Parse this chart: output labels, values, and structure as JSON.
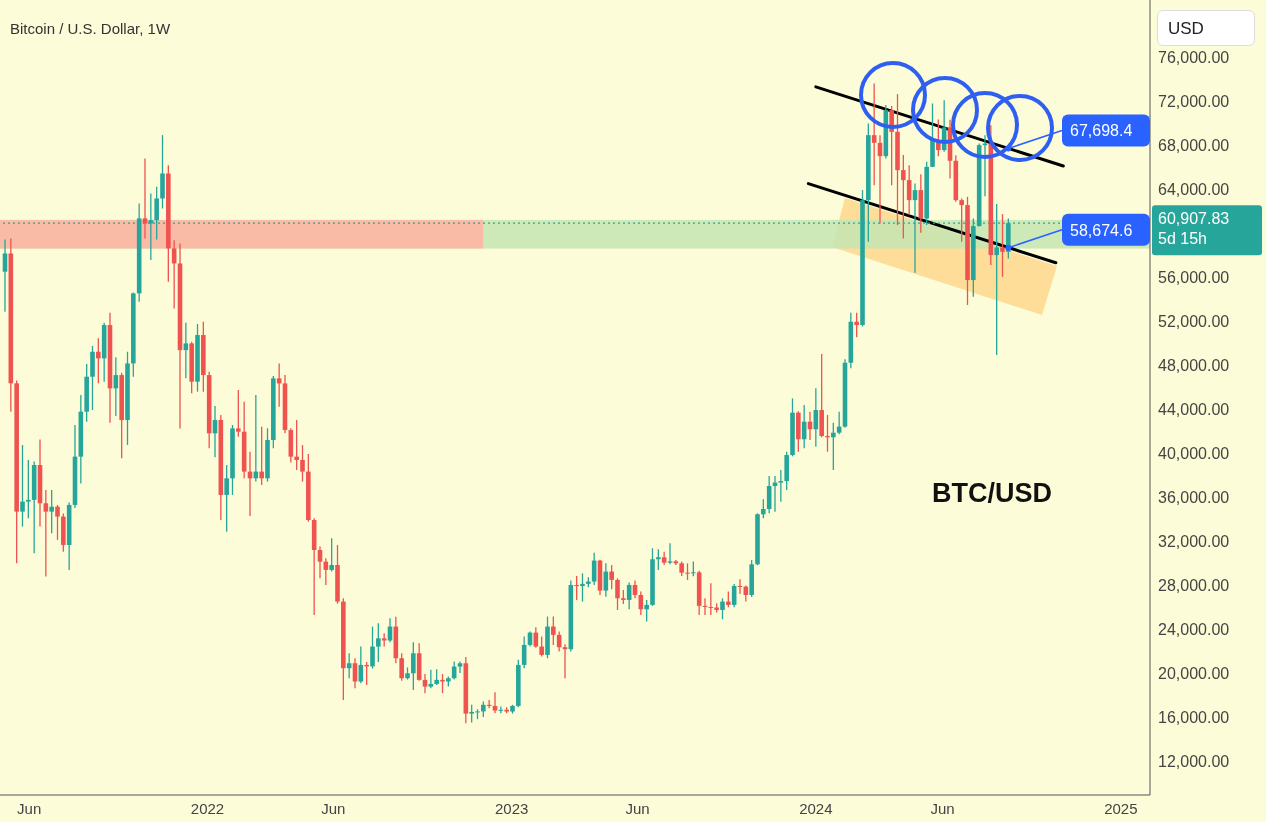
{
  "chart_data": {
    "type": "candlestick",
    "title": "Bitcoin / U.S. Dollar, 1W",
    "ylabel": "USD",
    "x": [
      "2021-05-03",
      "2021-05-10",
      "2021-05-17",
      "2021-05-24",
      "2021-05-31",
      "2021-06-07",
      "2021-06-14",
      "2021-06-21",
      "2021-06-28",
      "2021-07-05",
      "2021-07-12",
      "2021-07-19",
      "2021-07-26",
      "2021-08-02",
      "2021-08-09",
      "2021-08-16",
      "2021-08-23",
      "2021-08-30",
      "2021-09-06",
      "2021-09-13",
      "2021-09-20",
      "2021-09-27",
      "2021-10-04",
      "2021-10-11",
      "2021-10-18",
      "2021-10-25",
      "2021-11-01",
      "2021-11-08",
      "2021-11-15",
      "2021-11-22",
      "2021-11-29",
      "2021-12-06",
      "2021-12-13",
      "2021-12-20",
      "2021-12-27",
      "2022-01-03",
      "2022-01-10",
      "2022-01-17",
      "2022-01-24",
      "2022-01-31",
      "2022-02-07",
      "2022-02-14",
      "2022-02-21",
      "2022-02-28",
      "2022-03-07",
      "2022-03-14",
      "2022-03-21",
      "2022-03-28",
      "2022-04-04",
      "2022-04-11",
      "2022-04-18",
      "2022-04-25",
      "2022-05-02",
      "2022-05-09",
      "2022-05-16",
      "2022-05-23",
      "2022-05-30",
      "2022-06-06",
      "2022-06-13",
      "2022-06-20",
      "2022-06-27",
      "2022-07-04",
      "2022-07-11",
      "2022-07-18",
      "2022-07-25",
      "2022-08-01",
      "2022-08-08",
      "2022-08-15",
      "2022-08-22",
      "2022-08-29",
      "2022-09-05",
      "2022-09-12",
      "2022-09-19",
      "2022-09-26",
      "2022-10-03",
      "2022-10-10",
      "2022-10-17",
      "2022-10-24",
      "2022-10-31",
      "2022-11-07",
      "2022-11-14",
      "2022-11-21",
      "2022-11-28",
      "2022-12-05",
      "2022-12-12",
      "2022-12-19",
      "2022-12-26",
      "2023-01-02",
      "2023-01-09",
      "2023-01-16",
      "2023-01-23",
      "2023-01-30",
      "2023-02-06",
      "2023-02-13",
      "2023-02-20",
      "2023-02-27",
      "2023-03-06",
      "2023-03-13",
      "2023-03-20",
      "2023-03-27",
      "2023-04-03",
      "2023-04-10",
      "2023-04-17",
      "2023-04-24",
      "2023-05-01",
      "2023-05-08",
      "2023-05-15",
      "2023-05-22",
      "2023-05-29",
      "2023-06-05",
      "2023-06-12",
      "2023-06-19",
      "2023-06-26",
      "2023-07-03",
      "2023-07-10",
      "2023-07-17",
      "2023-07-24",
      "2023-07-31",
      "2023-08-07",
      "2023-08-14",
      "2023-08-21",
      "2023-08-28",
      "2023-09-04",
      "2023-09-11",
      "2023-09-18",
      "2023-09-25",
      "2023-10-02",
      "2023-10-09",
      "2023-10-16",
      "2023-10-23",
      "2023-10-30",
      "2023-11-06",
      "2023-11-13",
      "2023-11-20",
      "2023-11-27",
      "2023-12-04",
      "2023-12-11",
      "2023-12-18",
      "2023-12-25",
      "2024-01-01",
      "2024-01-08",
      "2024-01-15",
      "2024-01-22",
      "2024-01-29",
      "2024-02-05",
      "2024-02-12",
      "2024-02-19",
      "2024-02-26",
      "2024-03-04",
      "2024-03-11",
      "2024-03-18",
      "2024-03-25",
      "2024-04-01",
      "2024-04-08",
      "2024-04-15",
      "2024-04-22",
      "2024-04-29",
      "2024-05-06",
      "2024-05-13",
      "2024-05-20",
      "2024-05-27",
      "2024-06-03",
      "2024-06-10",
      "2024-06-17",
      "2024-06-24",
      "2024-07-01",
      "2024-07-08",
      "2024-07-15",
      "2024-07-22",
      "2024-07-29",
      "2024-08-05",
      "2024-08-12",
      "2024-08-19"
    ],
    "ohlc": [
      [
        56490,
        59420,
        52850,
        58150
      ],
      [
        58150,
        59510,
        43760,
        46340
      ],
      [
        46340,
        46600,
        29970,
        34670
      ],
      [
        34670,
        40730,
        33310,
        35580
      ],
      [
        35580,
        39370,
        34070,
        35740
      ],
      [
        35740,
        39220,
        30880,
        38910
      ],
      [
        38910,
        41240,
        33310,
        35430
      ],
      [
        35430,
        36640,
        28760,
        34670
      ],
      [
        34670,
        36640,
        32700,
        35120
      ],
      [
        35120,
        35280,
        32100,
        34220
      ],
      [
        34220,
        34500,
        31030,
        31640
      ],
      [
        31640,
        35500,
        29370,
        35280
      ],
      [
        35280,
        42550,
        35000,
        39670
      ],
      [
        39670,
        45270,
        37240,
        43760
      ],
      [
        43760,
        48090,
        42850,
        46940
      ],
      [
        46940,
        49730,
        43910,
        49210
      ],
      [
        49210,
        50430,
        46340,
        48610
      ],
      [
        48610,
        51850,
        46490,
        51640
      ],
      [
        51640,
        52760,
        42760,
        45880
      ],
      [
        45880,
        48700,
        43370,
        47090
      ],
      [
        47090,
        47300,
        39520,
        43000
      ],
      [
        43000,
        49210,
        40730,
        48150
      ],
      [
        48150,
        54600,
        46940,
        54520
      ],
      [
        54520,
        62700,
        53760,
        61340
      ],
      [
        61340,
        66790,
        59510,
        60880
      ],
      [
        60880,
        63610,
        57550,
        61180
      ],
      [
        61180,
        64210,
        59420,
        63150
      ],
      [
        63150,
        68910,
        62240,
        65420
      ],
      [
        65420,
        66180,
        55580,
        58610
      ],
      [
        58610,
        59360,
        53150,
        57240
      ],
      [
        57240,
        59060,
        42240,
        49360
      ],
      [
        49360,
        51850,
        46790,
        49970
      ],
      [
        49970,
        50120,
        45430,
        46490
      ],
      [
        46490,
        51730,
        45580,
        50730
      ],
      [
        50730,
        51940,
        45580,
        47090
      ],
      [
        47090,
        47400,
        40430,
        41790
      ],
      [
        41790,
        44280,
        39610,
        43000
      ],
      [
        43000,
        43460,
        33910,
        36190
      ],
      [
        36190,
        38910,
        32850,
        37700
      ],
      [
        37700,
        42550,
        36190,
        42240
      ],
      [
        42240,
        45730,
        41490,
        41940
      ],
      [
        41940,
        44670,
        37700,
        38310
      ],
      [
        38310,
        40120,
        34280,
        37700
      ],
      [
        37700,
        45270,
        37400,
        38310
      ],
      [
        38310,
        42400,
        37100,
        37700
      ],
      [
        37700,
        42250,
        37400,
        41190
      ],
      [
        41190,
        47000,
        40430,
        46790
      ],
      [
        46790,
        48150,
        44210,
        46330
      ],
      [
        46330,
        47090,
        41790,
        42090
      ],
      [
        42090,
        42250,
        39130,
        39670
      ],
      [
        39670,
        43000,
        38460,
        39370
      ],
      [
        39370,
        40730,
        37400,
        38310
      ],
      [
        38310,
        39910,
        33760,
        33910
      ],
      [
        33910,
        34060,
        25280,
        31180
      ],
      [
        31180,
        31500,
        28610,
        30120
      ],
      [
        30120,
        30430,
        28000,
        29370
      ],
      [
        29370,
        32250,
        29220,
        29820
      ],
      [
        29820,
        31640,
        26300,
        26490
      ],
      [
        26490,
        26790,
        17550,
        20430
      ],
      [
        20430,
        21790,
        19520,
        20880
      ],
      [
        20880,
        21340,
        18610,
        19220
      ],
      [
        19220,
        22400,
        19070,
        20730
      ],
      [
        20730,
        21000,
        18910,
        20600
      ],
      [
        20600,
        24220,
        20400,
        22400
      ],
      [
        22400,
        24520,
        21000,
        23150
      ],
      [
        23150,
        23610,
        22400,
        22950
      ],
      [
        22950,
        24970,
        22800,
        24220
      ],
      [
        24220,
        25120,
        20880,
        21340
      ],
      [
        21340,
        21800,
        19300,
        19520
      ],
      [
        19520,
        20500,
        19400,
        19970
      ],
      [
        19970,
        22800,
        18460,
        21790
      ],
      [
        21790,
        22700,
        19300,
        19370
      ],
      [
        19370,
        19900,
        18160,
        18760
      ],
      [
        18760,
        20280,
        18610,
        19000
      ],
      [
        19000,
        20340,
        18900,
        19370
      ],
      [
        19370,
        19900,
        18160,
        19220
      ],
      [
        19220,
        19670,
        18760,
        19520
      ],
      [
        19520,
        21030,
        19400,
        20580
      ],
      [
        20580,
        21030,
        20000,
        20880
      ],
      [
        20880,
        21450,
        15430,
        16300
      ],
      [
        16300,
        17100,
        15500,
        16450
      ],
      [
        16450,
        16700,
        15800,
        16500
      ],
      [
        16500,
        17400,
        16000,
        17100
      ],
      [
        17100,
        17550,
        16800,
        17000
      ],
      [
        17000,
        18250,
        16340,
        16580
      ],
      [
        16580,
        16940,
        16340,
        16650
      ],
      [
        16650,
        16880,
        16340,
        16490
      ],
      [
        16490,
        17100,
        16300,
        17000
      ],
      [
        17000,
        21190,
        16880,
        20730
      ],
      [
        20730,
        23310,
        20430,
        22550
      ],
      [
        22550,
        23760,
        22400,
        23670
      ],
      [
        23670,
        24160,
        22300,
        22400
      ],
      [
        22400,
        23310,
        21490,
        21640
      ],
      [
        21640,
        25130,
        21340,
        24220
      ],
      [
        24220,
        25130,
        22550,
        23460
      ],
      [
        23460,
        23760,
        21940,
        22340
      ],
      [
        22340,
        22600,
        19520,
        22160
      ],
      [
        22160,
        28400,
        21940,
        28000
      ],
      [
        28000,
        28820,
        26640,
        27900
      ],
      [
        27900,
        29060,
        26490,
        28100
      ],
      [
        28100,
        28700,
        27800,
        28310
      ],
      [
        28310,
        30940,
        28000,
        30220
      ],
      [
        30220,
        30300,
        27100,
        27490
      ],
      [
        27490,
        29970,
        26940,
        29220
      ],
      [
        29220,
        29820,
        27610,
        28460
      ],
      [
        28460,
        28600,
        25730,
        26790
      ],
      [
        26790,
        27550,
        26280,
        26640
      ],
      [
        26640,
        28220,
        25790,
        28000
      ],
      [
        28000,
        28400,
        26790,
        27090
      ],
      [
        27090,
        27400,
        25280,
        25790
      ],
      [
        25790,
        26640,
        24670,
        26190
      ],
      [
        26190,
        31340,
        26100,
        30340
      ],
      [
        30340,
        31250,
        29370,
        30520
      ],
      [
        30520,
        31030,
        29820,
        30030
      ],
      [
        30030,
        31790,
        29880,
        30150
      ],
      [
        30150,
        30280,
        29820,
        29970
      ],
      [
        29970,
        30130,
        28820,
        29120
      ],
      [
        29120,
        29970,
        28460,
        29060
      ],
      [
        29060,
        30130,
        28800,
        29150
      ],
      [
        29150,
        29300,
        25280,
        26100
      ],
      [
        26100,
        26790,
        25280,
        26000
      ],
      [
        26000,
        28160,
        25280,
        25950
      ],
      [
        25950,
        26340,
        25490,
        25730
      ],
      [
        25730,
        26790,
        24880,
        26490
      ],
      [
        26490,
        27400,
        25970,
        26190
      ],
      [
        26190,
        28090,
        25970,
        27910
      ],
      [
        27910,
        28520,
        27190,
        27850
      ],
      [
        27850,
        27950,
        26490,
        27090
      ],
      [
        27090,
        30280,
        26900,
        29880
      ],
      [
        29880,
        34520,
        29800,
        34430
      ],
      [
        34430,
        35790,
        34060,
        34910
      ],
      [
        34910,
        37910,
        34520,
        37000
      ],
      [
        37000,
        37910,
        34670,
        37310
      ],
      [
        37310,
        38460,
        35580,
        37450
      ],
      [
        37450,
        40120,
        36640,
        39820
      ],
      [
        39820,
        44970,
        39700,
        43670
      ],
      [
        43670,
        43800,
        40120,
        41250
      ],
      [
        41250,
        44370,
        40430,
        42850
      ],
      [
        42850,
        43760,
        41190,
        42160
      ],
      [
        42160,
        45880,
        40580,
        43910
      ],
      [
        43910,
        49000,
        41430,
        41550
      ],
      [
        41550,
        43460,
        40120,
        41430
      ],
      [
        41430,
        42760,
        38460,
        41850
      ],
      [
        41850,
        43760,
        41700,
        42400
      ],
      [
        42400,
        48520,
        42300,
        48210
      ],
      [
        48210,
        52760,
        47700,
        51940
      ],
      [
        51940,
        52760,
        50520,
        51640
      ],
      [
        51640,
        63910,
        51500,
        63000
      ],
      [
        63000,
        69970,
        59210,
        68910
      ],
      [
        68910,
        73610,
        64360,
        68210
      ],
      [
        68210,
        68910,
        60880,
        67000
      ],
      [
        67000,
        71640,
        66790,
        71180
      ],
      [
        71180,
        71550,
        64360,
        69210
      ],
      [
        69210,
        72640,
        60730,
        65730
      ],
      [
        65730,
        67100,
        59520,
        64820
      ],
      [
        64820,
        66180,
        61640,
        63000
      ],
      [
        63000,
        64520,
        56400,
        63910
      ],
      [
        63910,
        65360,
        60030,
        61330
      ],
      [
        61330,
        66490,
        60730,
        66030
      ],
      [
        66030,
        71790,
        66000,
        68460
      ],
      [
        68460,
        70330,
        67000,
        67550
      ],
      [
        67550,
        72090,
        67400,
        69610
      ],
      [
        69610,
        70300,
        64970,
        66580
      ],
      [
        66580,
        67090,
        62850,
        63000
      ],
      [
        63000,
        63150,
        59210,
        62550
      ],
      [
        62550,
        63300,
        53460,
        55730
      ],
      [
        55730,
        61330,
        54220,
        60640
      ],
      [
        60640,
        68150,
        60600,
        68000
      ],
      [
        68000,
        68900,
        63360,
        68150
      ],
      [
        68150,
        69820,
        57090,
        58000
      ],
      [
        58000,
        62640,
        48910,
        58700
      ],
      [
        58700,
        61730,
        56030,
        58300
      ],
      [
        58300,
        61330,
        57700,
        60907.83
      ]
    ],
    "colors": [
      "#26a69a",
      "#ef5350",
      "#ef5350",
      "#26a69a",
      "#26a69a",
      "#26a69a",
      "#ef5350",
      "#ef5350",
      "#26a69a",
      "#ef5350",
      "#ef5350",
      "#26a69a",
      "#26a69a",
      "#26a69a",
      "#26a69a",
      "#26a69a",
      "#ef5350",
      "#26a69a",
      "#ef5350",
      "#26a69a",
      "#ef5350",
      "#26a69a",
      "#26a69a",
      "#26a69a",
      "#ef5350",
      "#26a69a",
      "#26a69a",
      "#26a69a",
      "#ef5350",
      "#ef5350",
      "#ef5350",
      "#26a69a",
      "#ef5350",
      "#26a69a",
      "#ef5350",
      "#ef5350",
      "#26a69a",
      "#ef5350",
      "#26a69a",
      "#26a69a",
      "#ef5350",
      "#ef5350",
      "#ef5350",
      "#26a69a",
      "#ef5350",
      "#26a69a",
      "#26a69a",
      "#ef5350",
      "#ef5350",
      "#ef5350",
      "#ef5350",
      "#ef5350",
      "#ef5350",
      "#ef5350",
      "#ef5350",
      "#ef5350",
      "#26a69a",
      "#ef5350",
      "#ef5350",
      "#26a69a",
      "#ef5350",
      "#26a69a",
      "#ef5350",
      "#26a69a",
      "#26a69a",
      "#ef5350",
      "#26a69a",
      "#ef5350",
      "#ef5350",
      "#26a69a",
      "#26a69a",
      "#ef5350",
      "#ef5350",
      "#26a69a",
      "#26a69a",
      "#ef5350",
      "#26a69a",
      "#26a69a",
      "#26a69a",
      "#ef5350",
      "#26a69a",
      "#26a69a",
      "#26a69a",
      "#ef5350",
      "#ef5350",
      "#26a69a",
      "#ef5350",
      "#26a69a",
      "#26a69a",
      "#26a69a",
      "#26a69a",
      "#ef5350",
      "#ef5350",
      "#26a69a",
      "#ef5350",
      "#ef5350",
      "#ef5350",
      "#26a69a",
      "#ef5350",
      "#26a69a",
      "#26a69a",
      "#26a69a",
      "#ef5350",
      "#26a69a",
      "#ef5350",
      "#ef5350",
      "#ef5350",
      "#26a69a",
      "#ef5350",
      "#ef5350",
      "#26a69a",
      "#26a69a",
      "#26a69a",
      "#ef5350",
      "#26a69a",
      "#ef5350",
      "#ef5350",
      "#ef5350",
      "#26a69a",
      "#ef5350",
      "#ef5350",
      "#ef5350",
      "#ef5350",
      "#26a69a",
      "#ef5350",
      "#26a69a",
      "#ef5350",
      "#ef5350",
      "#26a69a",
      "#26a69a",
      "#26a69a",
      "#26a69a",
      "#26a69a",
      "#26a69a",
      "#26a69a",
      "#26a69a",
      "#ef5350",
      "#26a69a",
      "#ef5350",
      "#26a69a",
      "#ef5350",
      "#ef5350",
      "#26a69a",
      "#26a69a",
      "#26a69a",
      "#26a69a",
      "#ef5350",
      "#26a69a",
      "#26a69a",
      "#ef5350",
      "#ef5350",
      "#26a69a",
      "#ef5350",
      "#ef5350",
      "#ef5350",
      "#ef5350",
      "#26a69a",
      "#ef5350",
      "#26a69a",
      "#26a69a",
      "#ef5350",
      "#26a69a",
      "#ef5350",
      "#ef5350",
      "#ef5350",
      "#ef5350",
      "#26a69a",
      "#26a69a",
      "#26a69a",
      "#ef5350",
      "#26a69a",
      "#ef5350",
      "#26a69a"
    ],
    "series": [
      {
        "type": "line",
        "x": [
          "2024-01-01",
          "2024-10-24"
        ],
        "values": [
          73300,
          66100
        ],
        "color": "#000000"
      },
      {
        "type": "line",
        "x": [
          "2023-12-23",
          "2024-10-15"
        ],
        "values": [
          64500,
          57300
        ],
        "color": "#000000"
      }
    ],
    "bands": [
      {
        "axis": "y",
        "from": 58600,
        "to": 61200,
        "color": "#c6e5b3"
      }
    ],
    "ref_lines": [
      {
        "axis": "y",
        "value": 60907.83,
        "label": "60,907.83\n5d 15h",
        "color": "#26a69a",
        "line_style": "dotted"
      }
    ],
    "annotations": [
      "BTC/USD",
      {
        "text": "67,698.4",
        "x": "2024-08-19",
        "y": 67698.4
      },
      {
        "text": "58,674.6",
        "x": "2024-08-19",
        "y": 58674.6
      }
    ],
    "xlim": [
      "2021-04-27",
      "2025-02-05"
    ],
    "xticks": [
      {
        "value": "2021-06-01",
        "label": "Jun"
      },
      {
        "value": "2022-01-01",
        "label": "2022"
      },
      {
        "value": "2022-06-01",
        "label": "Jun"
      },
      {
        "value": "2023-01-01",
        "label": "2023"
      },
      {
        "value": "2023-06-01",
        "label": "Jun"
      },
      {
        "value": "2024-01-01",
        "label": "2024"
      },
      {
        "value": "2024-06-01",
        "label": "Jun"
      },
      {
        "value": "2025-01-01",
        "label": "2025"
      }
    ],
    "ylim": [
      8900,
      81200
    ],
    "yticks": [
      {
        "value": 12000,
        "label": "12,000.00"
      },
      {
        "value": 16000,
        "label": "16,000.00"
      },
      {
        "value": 20000,
        "label": "20,000.00"
      },
      {
        "value": 24000,
        "label": "24,000.00"
      },
      {
        "value": 28000,
        "label": "28,000.00"
      },
      {
        "value": 32000,
        "label": "32,000.00"
      },
      {
        "value": 36000,
        "label": "36,000.00"
      },
      {
        "value": 40000,
        "label": "40,000.00"
      },
      {
        "value": 44000,
        "label": "44,000.00"
      },
      {
        "value": 48000,
        "label": "48,000.00"
      },
      {
        "value": 52000,
        "label": "52,000.00"
      },
      {
        "value": 56000,
        "label": "56,000.00"
      },
      {
        "value": 64000,
        "label": "64,000.00"
      },
      {
        "value": 68000,
        "label": "68,000.00"
      },
      {
        "value": 72000,
        "label": "72,000.00"
      },
      {
        "value": 76000,
        "label": "76,000.00"
      }
    ]
  }
}
